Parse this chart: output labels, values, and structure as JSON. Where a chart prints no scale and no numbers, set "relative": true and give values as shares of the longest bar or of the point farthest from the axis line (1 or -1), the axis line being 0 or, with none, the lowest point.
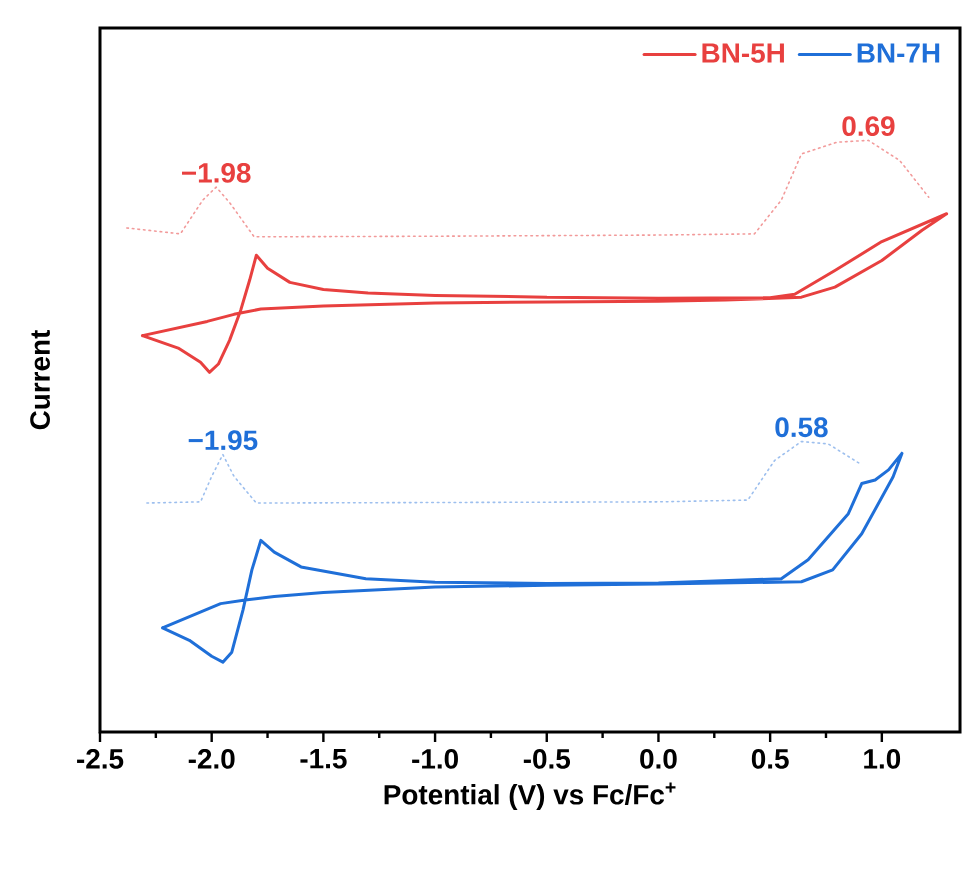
{
  "chart_data": {
    "type": "line",
    "relative": true,
    "xlabel": "Potential (V) vs Fc/Fc$^{+}$",
    "ylabel": "Current",
    "xlim": [
      -2.5,
      1.35
    ],
    "xticks": [
      {
        "value": -2.5,
        "label": "-2.5"
      },
      {
        "value": -2.0,
        "label": "-2.0"
      },
      {
        "value": -1.5,
        "label": "-1.5"
      },
      {
        "value": -1.0,
        "label": "-1.0"
      },
      {
        "value": -0.5,
        "label": "-0.5"
      },
      {
        "value": 0.0,
        "label": "0.0"
      },
      {
        "value": 0.5,
        "label": "0.5"
      },
      {
        "value": 1.0,
        "label": "1.0"
      }
    ],
    "legend": "top right",
    "grid": false,
    "marker": "none",
    "series": [
      {
        "name": "BN-5H",
        "color": "#e8403f",
        "line_style": "solid",
        "x": [
          -0.5,
          0.0,
          0.5,
          0.61,
          0.79,
          1.0,
          1.29,
          null,
          1.29,
          1.18,
          1.0,
          0.79,
          0.64,
          0.3,
          0.0,
          -0.5,
          -1.0,
          -1.5,
          -1.78,
          -1.9,
          -2.02,
          -2.31,
          null,
          -2.31,
          -2.15,
          -2.05,
          -2.01,
          -1.97,
          -1.92,
          -1.87,
          -1.83,
          -1.8,
          -1.75,
          -1.65,
          -1.5,
          -1.3,
          -1.0,
          -0.5
        ],
        "values": [
          0.735,
          0.733,
          0.734,
          0.74,
          0.78,
          0.829,
          0.876,
          null,
          0.876,
          0.848,
          0.797,
          0.752,
          0.735,
          0.73,
          0.728,
          0.727,
          0.725,
          0.72,
          0.715,
          0.706,
          0.694,
          0.67,
          null,
          0.67,
          0.649,
          0.625,
          0.608,
          0.622,
          0.662,
          0.713,
          0.764,
          0.806,
          0.784,
          0.76,
          0.748,
          0.742,
          0.738,
          0.735
        ]
      },
      {
        "color": "#f29a9a",
        "line_style": "dotted",
        "x": [
          -2.38,
          -2.14,
          -2.04,
          -1.98,
          -1.92,
          -1.81,
          -1.0,
          0.0,
          0.43,
          0.55,
          0.64,
          0.8,
          0.94,
          1.08,
          1.21
        ],
        "values": [
          0.852,
          0.842,
          0.899,
          0.921,
          0.895,
          0.837,
          0.838,
          0.84,
          0.842,
          0.899,
          0.977,
          0.997,
          1.0,
          0.966,
          0.904
        ]
      },
      {
        "name": "BN-7H",
        "color": "#1f6fd8",
        "line_style": "solid",
        "x": [
          -0.5,
          0.0,
          0.55,
          0.67,
          0.85,
          0.91,
          0.97,
          1.03,
          1.09,
          null,
          1.09,
          1.05,
          0.91,
          0.78,
          0.64,
          0.0,
          -0.5,
          -1.0,
          -1.5,
          -1.72,
          -1.85,
          -1.96,
          -2.22,
          null,
          -2.22,
          -2.1,
          -2.0,
          -1.95,
          -1.91,
          -1.86,
          -1.82,
          -1.78,
          -1.72,
          -1.6,
          -1.31,
          -1.0,
          -0.5
        ],
        "values": [
          0.251,
          0.252,
          0.259,
          0.291,
          0.369,
          0.42,
          0.426,
          0.443,
          0.471,
          null,
          0.471,
          0.431,
          0.335,
          0.274,
          0.254,
          0.25,
          0.248,
          0.245,
          0.236,
          0.229,
          0.223,
          0.217,
          0.176,
          null,
          0.176,
          0.155,
          0.128,
          0.118,
          0.135,
          0.206,
          0.274,
          0.324,
          0.304,
          0.279,
          0.259,
          0.253,
          0.251
        ]
      },
      {
        "color": "#9dbfee",
        "line_style": "dotted",
        "x": [
          -2.29,
          -2.05,
          -2.0,
          -1.95,
          -1.9,
          -1.8,
          0.0,
          0.4,
          0.52,
          0.64,
          0.76,
          0.9
        ],
        "values": [
          0.387,
          0.389,
          0.432,
          0.469,
          0.432,
          0.387,
          0.389,
          0.392,
          0.459,
          0.491,
          0.487,
          0.454
        ]
      }
    ],
    "annotations": [
      "−1.98",
      "0.69",
      "−1.95",
      "0.58"
    ]
  }
}
